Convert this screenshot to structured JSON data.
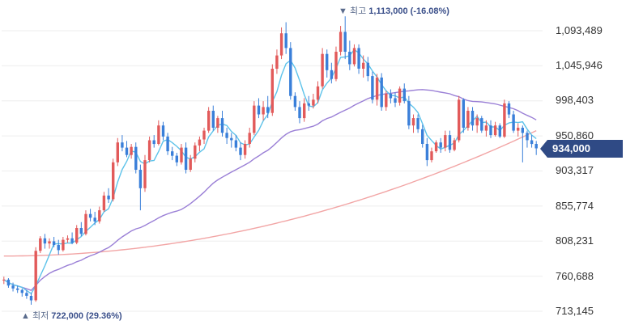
{
  "chart_data": {
    "type": "candlestick",
    "ylim": [
      713145,
      1113000
    ],
    "y_ticks": [
      "1,093,489",
      "1,045,946",
      "998,403",
      "950,860",
      "903,317",
      "855,774",
      "808,231",
      "760,688",
      "713,145"
    ],
    "current_price": "934,000",
    "annotations": {
      "high": {
        "arrow": "▼",
        "label": "최고",
        "value": "1,113,000 (-16.08%)"
      },
      "low": {
        "arrow": "▲",
        "label": "최저",
        "value": "722,000 (29.36%)"
      }
    },
    "colors": {
      "up": "#e25a5a",
      "down": "#3a7fd9",
      "ma_short": "#5ec3ea",
      "ma_mid": "#9a7fd6",
      "ma_long": "#f2a5a5",
      "badge": "#2f4a85",
      "grid": "#eeeeee"
    },
    "candles": [
      [
        755000,
        760000,
        750000,
        756000
      ],
      [
        756000,
        758000,
        745000,
        748000
      ],
      [
        748000,
        752000,
        740000,
        744000
      ],
      [
        744000,
        748000,
        738000,
        742000
      ],
      [
        742000,
        744000,
        733000,
        738000
      ],
      [
        738000,
        742000,
        730000,
        734000
      ],
      [
        734000,
        738000,
        722000,
        728000
      ],
      [
        728000,
        800000,
        726000,
        795000
      ],
      [
        795000,
        815000,
        792000,
        812000
      ],
      [
        812000,
        818000,
        798000,
        805000
      ],
      [
        805000,
        812000,
        798000,
        808000
      ],
      [
        808000,
        814000,
        800000,
        803000
      ],
      [
        803000,
        810000,
        790000,
        796000
      ],
      [
        796000,
        814000,
        794000,
        810000
      ],
      [
        810000,
        816000,
        806000,
        812000
      ],
      [
        812000,
        820000,
        804000,
        806000
      ],
      [
        806000,
        830000,
        804000,
        826000
      ],
      [
        826000,
        834000,
        815000,
        818000
      ],
      [
        818000,
        850000,
        816000,
        845000
      ],
      [
        845000,
        852000,
        835000,
        840000
      ],
      [
        840000,
        848000,
        830000,
        835000
      ],
      [
        835000,
        855000,
        832000,
        850000
      ],
      [
        850000,
        875000,
        848000,
        870000
      ],
      [
        870000,
        880000,
        860000,
        865000
      ],
      [
        865000,
        920000,
        862000,
        915000
      ],
      [
        915000,
        948000,
        910000,
        942000
      ],
      [
        942000,
        952000,
        930000,
        935000
      ],
      [
        935000,
        944000,
        922000,
        925000
      ],
      [
        925000,
        940000,
        920000,
        936000
      ],
      [
        936000,
        942000,
        900000,
        905000
      ],
      [
        905000,
        912000,
        850000,
        880000
      ],
      [
        880000,
        925000,
        875000,
        918000
      ],
      [
        918000,
        950000,
        915000,
        945000
      ],
      [
        945000,
        952000,
        935000,
        940000
      ],
      [
        940000,
        972000,
        938000,
        965000
      ],
      [
        965000,
        970000,
        945000,
        950000
      ],
      [
        950000,
        955000,
        925000,
        930000
      ],
      [
        930000,
        936000,
        918000,
        924000
      ],
      [
        924000,
        928000,
        910000,
        915000
      ],
      [
        915000,
        940000,
        912000,
        935000
      ],
      [
        935000,
        942000,
        900000,
        905000
      ],
      [
        905000,
        925000,
        902000,
        920000
      ],
      [
        920000,
        942000,
        915000,
        938000
      ],
      [
        938000,
        950000,
        930000,
        946000
      ],
      [
        946000,
        962000,
        940000,
        958000
      ],
      [
        958000,
        990000,
        955000,
        985000
      ],
      [
        985000,
        992000,
        958000,
        962000
      ],
      [
        962000,
        978000,
        955000,
        975000
      ],
      [
        975000,
        985000,
        950000,
        955000
      ],
      [
        955000,
        962000,
        940000,
        948000
      ],
      [
        948000,
        955000,
        935000,
        945000
      ],
      [
        945000,
        952000,
        930000,
        935000
      ],
      [
        935000,
        942000,
        918000,
        925000
      ],
      [
        925000,
        945000,
        920000,
        940000
      ],
      [
        940000,
        962000,
        935000,
        955000
      ],
      [
        955000,
        998000,
        952000,
        992000
      ],
      [
        992000,
        1002000,
        975000,
        980000
      ],
      [
        980000,
        998000,
        972000,
        990000
      ],
      [
        990000,
        1005000,
        975000,
        982000
      ],
      [
        982000,
        1048000,
        978000,
        1042000
      ],
      [
        1042000,
        1068000,
        1035000,
        1060000
      ],
      [
        1060000,
        1098000,
        1055000,
        1090000
      ],
      [
        1090000,
        1105000,
        1062000,
        1070000
      ],
      [
        1070000,
        1078000,
        1000000,
        1005000
      ],
      [
        1005000,
        1010000,
        985000,
        990000
      ],
      [
        990000,
        998000,
        968000,
        975000
      ],
      [
        975000,
        1002000,
        970000,
        995000
      ],
      [
        995000,
        1005000,
        985000,
        992000
      ],
      [
        992000,
        1008000,
        988000,
        1000000
      ],
      [
        1000000,
        1025000,
        995000,
        1018000
      ],
      [
        1018000,
        1070000,
        1015000,
        1062000
      ],
      [
        1062000,
        1068000,
        1030000,
        1040000
      ],
      [
        1040000,
        1050000,
        1022000,
        1028000
      ],
      [
        1028000,
        1072000,
        1025000,
        1065000
      ],
      [
        1065000,
        1100000,
        1060000,
        1092000
      ],
      [
        1092000,
        1113000,
        1055000,
        1065000
      ],
      [
        1065000,
        1080000,
        1040000,
        1048000
      ],
      [
        1048000,
        1075000,
        1045000,
        1070000
      ],
      [
        1070000,
        1075000,
        1035000,
        1042000
      ],
      [
        1042000,
        1060000,
        1030000,
        1050000
      ],
      [
        1050000,
        1058000,
        1025000,
        1032000
      ],
      [
        1032000,
        1038000,
        995000,
        1000000
      ],
      [
        1000000,
        1035000,
        992000,
        1030000
      ],
      [
        1030000,
        1036000,
        985000,
        990000
      ],
      [
        990000,
        1012000,
        985000,
        1008000
      ],
      [
        1008000,
        1014000,
        995000,
        1002000
      ],
      [
        1002000,
        1010000,
        990000,
        996000
      ],
      [
        996000,
        1018000,
        992000,
        1015000
      ],
      [
        1015000,
        1022000,
        995000,
        998000
      ],
      [
        998000,
        1005000,
        960000,
        965000
      ],
      [
        965000,
        980000,
        955000,
        975000
      ],
      [
        975000,
        980000,
        955000,
        960000
      ],
      [
        960000,
        966000,
        935000,
        940000
      ],
      [
        940000,
        948000,
        910000,
        918000
      ],
      [
        918000,
        935000,
        915000,
        930000
      ],
      [
        930000,
        945000,
        928000,
        942000
      ],
      [
        942000,
        948000,
        928000,
        935000
      ],
      [
        935000,
        958000,
        930000,
        952000
      ],
      [
        952000,
        958000,
        928000,
        932000
      ],
      [
        932000,
        948000,
        930000,
        945000
      ],
      [
        945000,
        1005000,
        942000,
        1000000
      ],
      [
        1000000,
        1002000,
        955000,
        962000
      ],
      [
        962000,
        990000,
        958000,
        985000
      ],
      [
        985000,
        990000,
        958000,
        965000
      ],
      [
        965000,
        980000,
        955000,
        975000
      ],
      [
        975000,
        978000,
        955000,
        958000
      ],
      [
        958000,
        972000,
        950000,
        965000
      ],
      [
        965000,
        972000,
        948000,
        952000
      ],
      [
        952000,
        970000,
        950000,
        965000
      ],
      [
        965000,
        968000,
        948000,
        950000
      ],
      [
        950000,
        1000000,
        948000,
        995000
      ],
      [
        995000,
        998000,
        975000,
        980000
      ],
      [
        980000,
        985000,
        955000,
        958000
      ],
      [
        958000,
        968000,
        950000,
        962000
      ],
      [
        962000,
        965000,
        915000,
        955000
      ],
      [
        955000,
        958000,
        935000,
        945000
      ],
      [
        945000,
        952000,
        935000,
        940000
      ],
      [
        940000,
        944000,
        925000,
        934000
      ]
    ]
  }
}
